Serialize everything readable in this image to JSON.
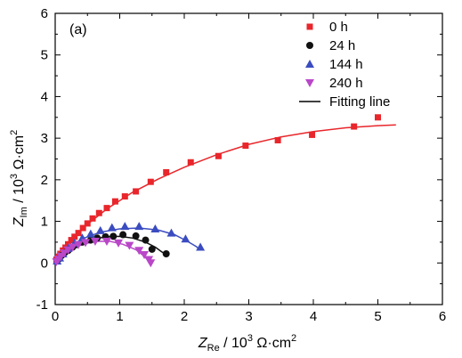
{
  "chart_data": {
    "type": "scatter",
    "panel_label": "(a)",
    "xlabel": {
      "main": "Z",
      "sub": "Re",
      "rest": " / 10",
      "sup": "3",
      "unit": " Ω·cm",
      "unit_sup": "2"
    },
    "ylabel": {
      "main": "Z",
      "sub": "Im",
      "rest": " / 10",
      "sup": "3",
      "unit": " Ω·cm",
      "unit_sup": "2"
    },
    "xlim": [
      0,
      6
    ],
    "ylim": [
      -1,
      6
    ],
    "xticks": [
      "0",
      "1",
      "2",
      "3",
      "4",
      "5",
      "6"
    ],
    "yticks": [
      "-1",
      "0",
      "1",
      "2",
      "3",
      "4",
      "5",
      "6"
    ],
    "grid": false,
    "legend_position": "top-right",
    "series": [
      {
        "name": "0 h",
        "marker": "square",
        "color": "#e8262b",
        "points": [
          [
            0.02,
            0.08
          ],
          [
            0.05,
            0.15
          ],
          [
            0.08,
            0.22
          ],
          [
            0.12,
            0.3
          ],
          [
            0.16,
            0.37
          ],
          [
            0.2,
            0.45
          ],
          [
            0.25,
            0.55
          ],
          [
            0.3,
            0.63
          ],
          [
            0.36,
            0.72
          ],
          [
            0.43,
            0.84
          ],
          [
            0.5,
            0.95
          ],
          [
            0.58,
            1.07
          ],
          [
            0.68,
            1.2
          ],
          [
            0.8,
            1.32
          ],
          [
            0.93,
            1.48
          ],
          [
            1.08,
            1.6
          ],
          [
            1.25,
            1.72
          ],
          [
            1.48,
            1.95
          ],
          [
            1.72,
            2.18
          ],
          [
            2.1,
            2.42
          ],
          [
            2.53,
            2.57
          ],
          [
            2.95,
            2.82
          ],
          [
            3.45,
            2.95
          ],
          [
            3.98,
            3.08
          ],
          [
            4.63,
            3.28
          ],
          [
            5.0,
            3.5
          ]
        ],
        "fit": [
          [
            0.0,
            0.0
          ],
          [
            0.1,
            0.26
          ],
          [
            0.25,
            0.54
          ],
          [
            0.5,
            0.93
          ],
          [
            0.8,
            1.3
          ],
          [
            1.2,
            1.7
          ],
          [
            1.6,
            2.02
          ],
          [
            2.0,
            2.3
          ],
          [
            2.5,
            2.6
          ],
          [
            3.0,
            2.85
          ],
          [
            3.5,
            3.03
          ],
          [
            4.0,
            3.16
          ],
          [
            4.5,
            3.25
          ],
          [
            5.0,
            3.3
          ],
          [
            5.28,
            3.32
          ]
        ]
      },
      {
        "name": "24 h",
        "marker": "circle",
        "color": "#111111",
        "points": [
          [
            0.03,
            0.05
          ],
          [
            0.06,
            0.1
          ],
          [
            0.1,
            0.18
          ],
          [
            0.15,
            0.25
          ],
          [
            0.2,
            0.3
          ],
          [
            0.27,
            0.38
          ],
          [
            0.33,
            0.44
          ],
          [
            0.42,
            0.5
          ],
          [
            0.55,
            0.55
          ],
          [
            0.65,
            0.6
          ],
          [
            0.78,
            0.63
          ],
          [
            0.9,
            0.64
          ],
          [
            1.05,
            0.68
          ],
          [
            1.25,
            0.65
          ],
          [
            1.4,
            0.55
          ],
          [
            1.5,
            0.33
          ],
          [
            1.72,
            0.22
          ]
        ],
        "fit": [
          [
            0.0,
            0.0
          ],
          [
            0.1,
            0.2
          ],
          [
            0.2,
            0.32
          ],
          [
            0.4,
            0.48
          ],
          [
            0.6,
            0.58
          ],
          [
            0.8,
            0.63
          ],
          [
            1.0,
            0.64
          ],
          [
            1.2,
            0.6
          ],
          [
            1.4,
            0.5
          ],
          [
            1.55,
            0.38
          ],
          [
            1.65,
            0.27
          ],
          [
            1.72,
            0.2
          ]
        ]
      },
      {
        "name": "144 h",
        "marker": "triangle-up",
        "color": "#3b4cc0",
        "points": [
          [
            0.03,
            0.05
          ],
          [
            0.07,
            0.12
          ],
          [
            0.12,
            0.22
          ],
          [
            0.2,
            0.35
          ],
          [
            0.3,
            0.48
          ],
          [
            0.42,
            0.6
          ],
          [
            0.55,
            0.7
          ],
          [
            0.7,
            0.78
          ],
          [
            0.88,
            0.85
          ],
          [
            1.08,
            0.88
          ],
          [
            1.3,
            0.88
          ],
          [
            1.55,
            0.82
          ],
          [
            1.8,
            0.72
          ],
          [
            2.02,
            0.58
          ],
          [
            2.25,
            0.38
          ]
        ],
        "fit": [
          [
            0.0,
            0.0
          ],
          [
            0.1,
            0.2
          ],
          [
            0.25,
            0.42
          ],
          [
            0.45,
            0.6
          ],
          [
            0.7,
            0.74
          ],
          [
            1.0,
            0.82
          ],
          [
            1.3,
            0.84
          ],
          [
            1.6,
            0.79
          ],
          [
            1.85,
            0.68
          ],
          [
            2.05,
            0.52
          ],
          [
            2.18,
            0.4
          ],
          [
            2.25,
            0.32
          ]
        ]
      },
      {
        "name": "240 h",
        "marker": "triangle-down",
        "color": "#b947c8",
        "points": [
          [
            0.02,
            0.03
          ],
          [
            0.05,
            0.09
          ],
          [
            0.09,
            0.16
          ],
          [
            0.14,
            0.24
          ],
          [
            0.2,
            0.31
          ],
          [
            0.27,
            0.38
          ],
          [
            0.36,
            0.44
          ],
          [
            0.47,
            0.49
          ],
          [
            0.62,
            0.52
          ],
          [
            0.8,
            0.52
          ],
          [
            0.98,
            0.48
          ],
          [
            1.15,
            0.42
          ],
          [
            1.3,
            0.3
          ],
          [
            1.38,
            0.2
          ],
          [
            1.45,
            0.08
          ],
          [
            1.48,
            0.0
          ]
        ],
        "fit": [
          [
            0.0,
            0.0
          ],
          [
            0.1,
            0.18
          ],
          [
            0.25,
            0.34
          ],
          [
            0.45,
            0.46
          ],
          [
            0.65,
            0.52
          ],
          [
            0.85,
            0.52
          ],
          [
            1.05,
            0.45
          ],
          [
            1.25,
            0.32
          ],
          [
            1.38,
            0.16
          ],
          [
            1.45,
            0.04
          ],
          [
            1.48,
            -0.02
          ]
        ]
      }
    ],
    "fit_legend": {
      "name": "Fitting line",
      "color": "#000000"
    }
  }
}
